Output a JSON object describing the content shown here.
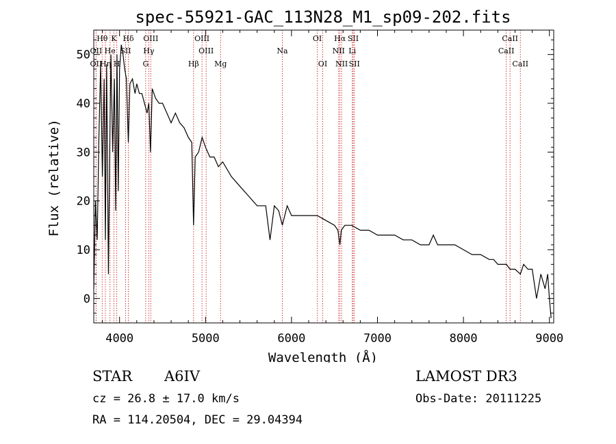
{
  "chart_data": {
    "type": "line",
    "title": "spec-55921-GAC_113N28_M1_sp09-202.fits",
    "xlabel": "Wavelength (Å)",
    "ylabel": "Flux (relative)",
    "xlim": [
      3700,
      9050
    ],
    "ylim": [
      -5,
      55
    ],
    "xticks": [
      4000,
      5000,
      6000,
      7000,
      8000,
      9000
    ],
    "yticks": [
      0,
      10,
      20,
      30,
      40,
      50
    ],
    "series": [
      {
        "name": "flux",
        "x": [
          3700,
          3720,
          3740,
          3760,
          3780,
          3800,
          3820,
          3835,
          3850,
          3870,
          3889,
          3900,
          3920,
          3940,
          3955,
          3970,
          3985,
          4000,
          4020,
          4040,
          4060,
          4080,
          4102,
          4120,
          4150,
          4180,
          4200,
          4230,
          4260,
          4290,
          4320,
          4340,
          4360,
          4380,
          4420,
          4460,
          4500,
          4550,
          4600,
          4650,
          4700,
          4750,
          4800,
          4840,
          4861,
          4880,
          4920,
          4960,
          5000,
          5050,
          5100,
          5150,
          5200,
          5300,
          5400,
          5500,
          5600,
          5700,
          5750,
          5800,
          5850,
          5893,
          5950,
          6000,
          6100,
          6200,
          6300,
          6400,
          6500,
          6540,
          6563,
          6580,
          6620,
          6700,
          6800,
          6900,
          7000,
          7100,
          7200,
          7300,
          7400,
          7500,
          7600,
          7650,
          7700,
          7800,
          7900,
          8000,
          8100,
          8200,
          8300,
          8350,
          8400,
          8500,
          8542,
          8600,
          8662,
          8700,
          8750,
          8800,
          8850,
          8900,
          8950,
          8980,
          9000,
          9020
        ],
        "y": [
          2,
          20,
          12,
          33,
          48,
          25,
          45,
          12,
          48,
          5,
          35,
          50,
          30,
          45,
          18,
          50,
          22,
          47,
          52,
          50,
          47,
          45,
          32,
          44,
          45,
          42,
          44,
          42,
          42,
          40,
          38,
          40,
          30,
          43,
          41,
          40,
          40,
          38,
          36,
          38,
          36,
          35,
          33,
          32,
          15,
          29,
          30,
          33,
          31,
          29,
          29,
          27,
          28,
          25,
          23,
          21,
          19,
          19,
          12,
          19,
          18,
          15,
          19,
          17,
          17,
          17,
          17,
          16,
          15,
          14,
          11,
          14,
          15,
          15,
          14,
          14,
          13,
          13,
          13,
          12,
          12,
          11,
          11,
          13,
          11,
          11,
          11,
          10,
          9,
          9,
          8,
          8,
          7,
          7,
          6,
          6,
          5,
          7,
          6,
          6,
          0,
          5,
          2,
          5,
          0,
          -4
        ]
      }
    ],
    "lines": [
      {
        "label": "Hθ",
        "wave": 3798,
        "row": 0
      },
      {
        "label": "OII",
        "wave": 3727,
        "row": 1
      },
      {
        "label": "OII",
        "wave": 3727,
        "row": 2
      },
      {
        "label": "Hη",
        "wave": 3835,
        "row": 2
      },
      {
        "label": "K",
        "wave": 3934,
        "row": 0
      },
      {
        "label": "He",
        "wave": 3889,
        "row": 1
      },
      {
        "label": "H",
        "wave": 3968,
        "row": 2
      },
      {
        "label": "SII",
        "wave": 4070,
        "row": 1
      },
      {
        "label": "Hδ",
        "wave": 4102,
        "row": 0
      },
      {
        "label": "OIII",
        "wave": 4363,
        "row": 0
      },
      {
        "label": "Hγ",
        "wave": 4340,
        "row": 1
      },
      {
        "label": "G",
        "wave": 4304,
        "row": 2
      },
      {
        "label": "Hβ",
        "wave": 4861,
        "row": 2
      },
      {
        "label": "OIII",
        "wave": 4959,
        "row": 0
      },
      {
        "label": "OIII",
        "wave": 5007,
        "row": 1
      },
      {
        "label": "Mg",
        "wave": 5175,
        "row": 2
      },
      {
        "label": "Na",
        "wave": 5893,
        "row": 1
      },
      {
        "label": "OI",
        "wave": 6300,
        "row": 0
      },
      {
        "label": "OI",
        "wave": 6363,
        "row": 2
      },
      {
        "label": "Hα",
        "wave": 6563,
        "row": 0
      },
      {
        "label": "NII",
        "wave": 6548,
        "row": 1
      },
      {
        "label": "NII",
        "wave": 6583,
        "row": 2
      },
      {
        "label": "SII",
        "wave": 6717,
        "row": 0
      },
      {
        "label": "Li",
        "wave": 6707,
        "row": 1
      },
      {
        "label": "SII",
        "wave": 6731,
        "row": 2
      },
      {
        "label": "CaII",
        "wave": 8542,
        "row": 0
      },
      {
        "label": "CaII",
        "wave": 8498,
        "row": 1
      },
      {
        "label": "CaII",
        "wave": 8662,
        "row": 2
      }
    ]
  },
  "info": {
    "object_class": "STAR",
    "subclass": "A6IV",
    "survey": "LAMOST DR3",
    "redshift": "cz = 26.8 ± 17.0 km/s",
    "obs_date": "Obs-Date: 20111225",
    "coords": "RA = 114.20504, DEC =  29.04394"
  },
  "colors": {
    "line_marker": "#cc2222",
    "spectrum": "#000000"
  }
}
